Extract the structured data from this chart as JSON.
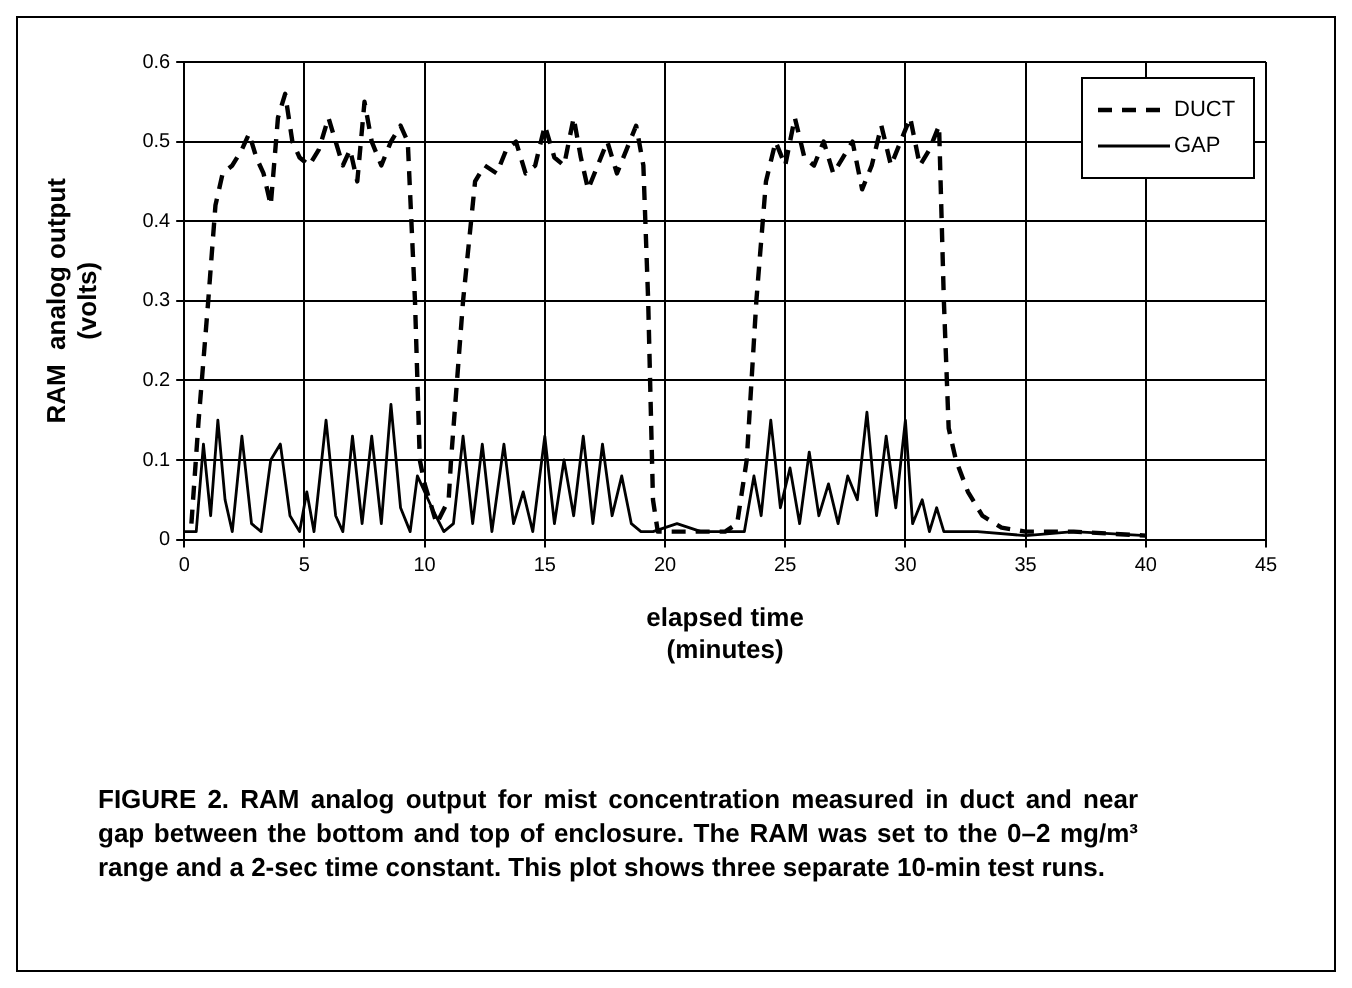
{
  "chart_data": {
    "type": "line",
    "xlabel": "elapsed time\n(minutes)",
    "ylabel": "RAM  analog output\n(volts)",
    "xlim": [
      0,
      45
    ],
    "xticks": [
      0,
      5,
      10,
      15,
      20,
      25,
      30,
      35,
      40,
      45
    ],
    "ylim": [
      0,
      0.6
    ],
    "yticks": [
      {
        "value": 0,
        "label": "0"
      },
      0.1,
      0.2,
      0.3,
      0.4,
      0.5,
      0.6
    ],
    "grid": true,
    "legend": "top right",
    "marker": "none",
    "series": [
      {
        "name": "DUCT",
        "color": "#000000",
        "line_style": "dashed",
        "x": [
          0.3,
          0.6,
          1.0,
          1.3,
          1.6,
          2.0,
          2.4,
          2.7,
          3.0,
          3.3,
          3.6,
          3.9,
          4.2,
          4.5,
          4.8,
          5.2,
          5.6,
          6.0,
          6.3,
          6.6,
          6.9,
          7.2,
          7.5,
          7.8,
          8.2,
          8.6,
          9.0,
          9.3,
          9.6,
          9.8,
          10.0,
          10.5,
          11.0,
          11.1,
          11.6,
          12.1,
          12.5,
          13.0,
          13.4,
          13.8,
          14.2,
          14.6,
          15.0,
          15.4,
          15.8,
          16.2,
          16.5,
          16.8,
          17.2,
          17.6,
          18.0,
          18.4,
          18.8,
          19.1,
          19.3,
          19.5,
          19.7,
          20.5,
          21.5,
          22.5,
          23.0,
          23.4,
          23.8,
          24.2,
          24.6,
          25.0,
          25.4,
          25.8,
          26.2,
          26.6,
          27.0,
          27.4,
          27.8,
          28.2,
          28.6,
          29.0,
          29.4,
          29.8,
          30.2,
          30.6,
          31.0,
          31.4,
          31.6,
          31.8,
          32.1,
          32.6,
          33.2,
          34.0,
          35.0,
          37.0,
          40.0
        ],
        "values": [
          0.02,
          0.15,
          0.3,
          0.42,
          0.46,
          0.47,
          0.49,
          0.51,
          0.48,
          0.46,
          0.42,
          0.53,
          0.56,
          0.5,
          0.48,
          0.47,
          0.49,
          0.53,
          0.5,
          0.47,
          0.49,
          0.45,
          0.55,
          0.5,
          0.47,
          0.5,
          0.52,
          0.5,
          0.3,
          0.1,
          0.07,
          0.02,
          0.05,
          0.1,
          0.3,
          0.45,
          0.47,
          0.46,
          0.49,
          0.5,
          0.46,
          0.47,
          0.52,
          0.48,
          0.47,
          0.53,
          0.48,
          0.44,
          0.47,
          0.5,
          0.46,
          0.49,
          0.52,
          0.47,
          0.3,
          0.05,
          0.01,
          0.01,
          0.01,
          0.01,
          0.02,
          0.1,
          0.3,
          0.45,
          0.5,
          0.47,
          0.53,
          0.48,
          0.47,
          0.5,
          0.46,
          0.48,
          0.5,
          0.44,
          0.47,
          0.52,
          0.47,
          0.5,
          0.53,
          0.47,
          0.49,
          0.52,
          0.3,
          0.14,
          0.1,
          0.06,
          0.03,
          0.015,
          0.01,
          0.01,
          0.005
        ]
      },
      {
        "name": "GAP",
        "color": "#000000",
        "line_style": "solid",
        "x": [
          0,
          0.5,
          0.8,
          1.1,
          1.4,
          1.7,
          2.0,
          2.4,
          2.8,
          3.2,
          3.6,
          4.0,
          4.4,
          4.8,
          5.1,
          5.4,
          5.9,
          6.3,
          6.6,
          7.0,
          7.4,
          7.8,
          8.2,
          8.6,
          9.0,
          9.4,
          9.7,
          10.3,
          10.8,
          11.2,
          11.6,
          12.0,
          12.4,
          12.8,
          13.3,
          13.7,
          14.1,
          14.5,
          15.0,
          15.4,
          15.8,
          16.2,
          16.6,
          17.0,
          17.4,
          17.8,
          18.2,
          18.6,
          19.0,
          19.5,
          20.5,
          21.5,
          22.5,
          23.3,
          23.7,
          24.0,
          24.4,
          24.8,
          25.2,
          25.6,
          26.0,
          26.4,
          26.8,
          27.2,
          27.6,
          28.0,
          28.4,
          28.8,
          29.2,
          29.6,
          30.0,
          30.3,
          30.7,
          31.0,
          31.3,
          31.6,
          33.0,
          35.0,
          37.0,
          40.0
        ],
        "values": [
          0.01,
          0.01,
          0.12,
          0.03,
          0.15,
          0.05,
          0.01,
          0.13,
          0.02,
          0.01,
          0.1,
          0.12,
          0.03,
          0.01,
          0.06,
          0.01,
          0.15,
          0.03,
          0.01,
          0.13,
          0.02,
          0.13,
          0.02,
          0.17,
          0.04,
          0.01,
          0.08,
          0.04,
          0.01,
          0.02,
          0.13,
          0.02,
          0.12,
          0.01,
          0.12,
          0.02,
          0.06,
          0.01,
          0.13,
          0.02,
          0.1,
          0.03,
          0.13,
          0.02,
          0.12,
          0.03,
          0.08,
          0.02,
          0.01,
          0.01,
          0.02,
          0.01,
          0.01,
          0.01,
          0.08,
          0.03,
          0.15,
          0.04,
          0.09,
          0.02,
          0.11,
          0.03,
          0.07,
          0.02,
          0.08,
          0.05,
          0.16,
          0.03,
          0.13,
          0.04,
          0.15,
          0.02,
          0.05,
          0.01,
          0.04,
          0.01,
          0.01,
          0.005,
          0.01,
          0.005
        ]
      }
    ],
    "annotations": [
      "FIGURE 2. RAM analog output for mist concentration measured in duct and near gap between the bottom and top of enclosure. The RAM was set to the 0–2 mg/m³ range and a 2-sec time constant. This plot shows three separate 10-min test runs."
    ]
  }
}
